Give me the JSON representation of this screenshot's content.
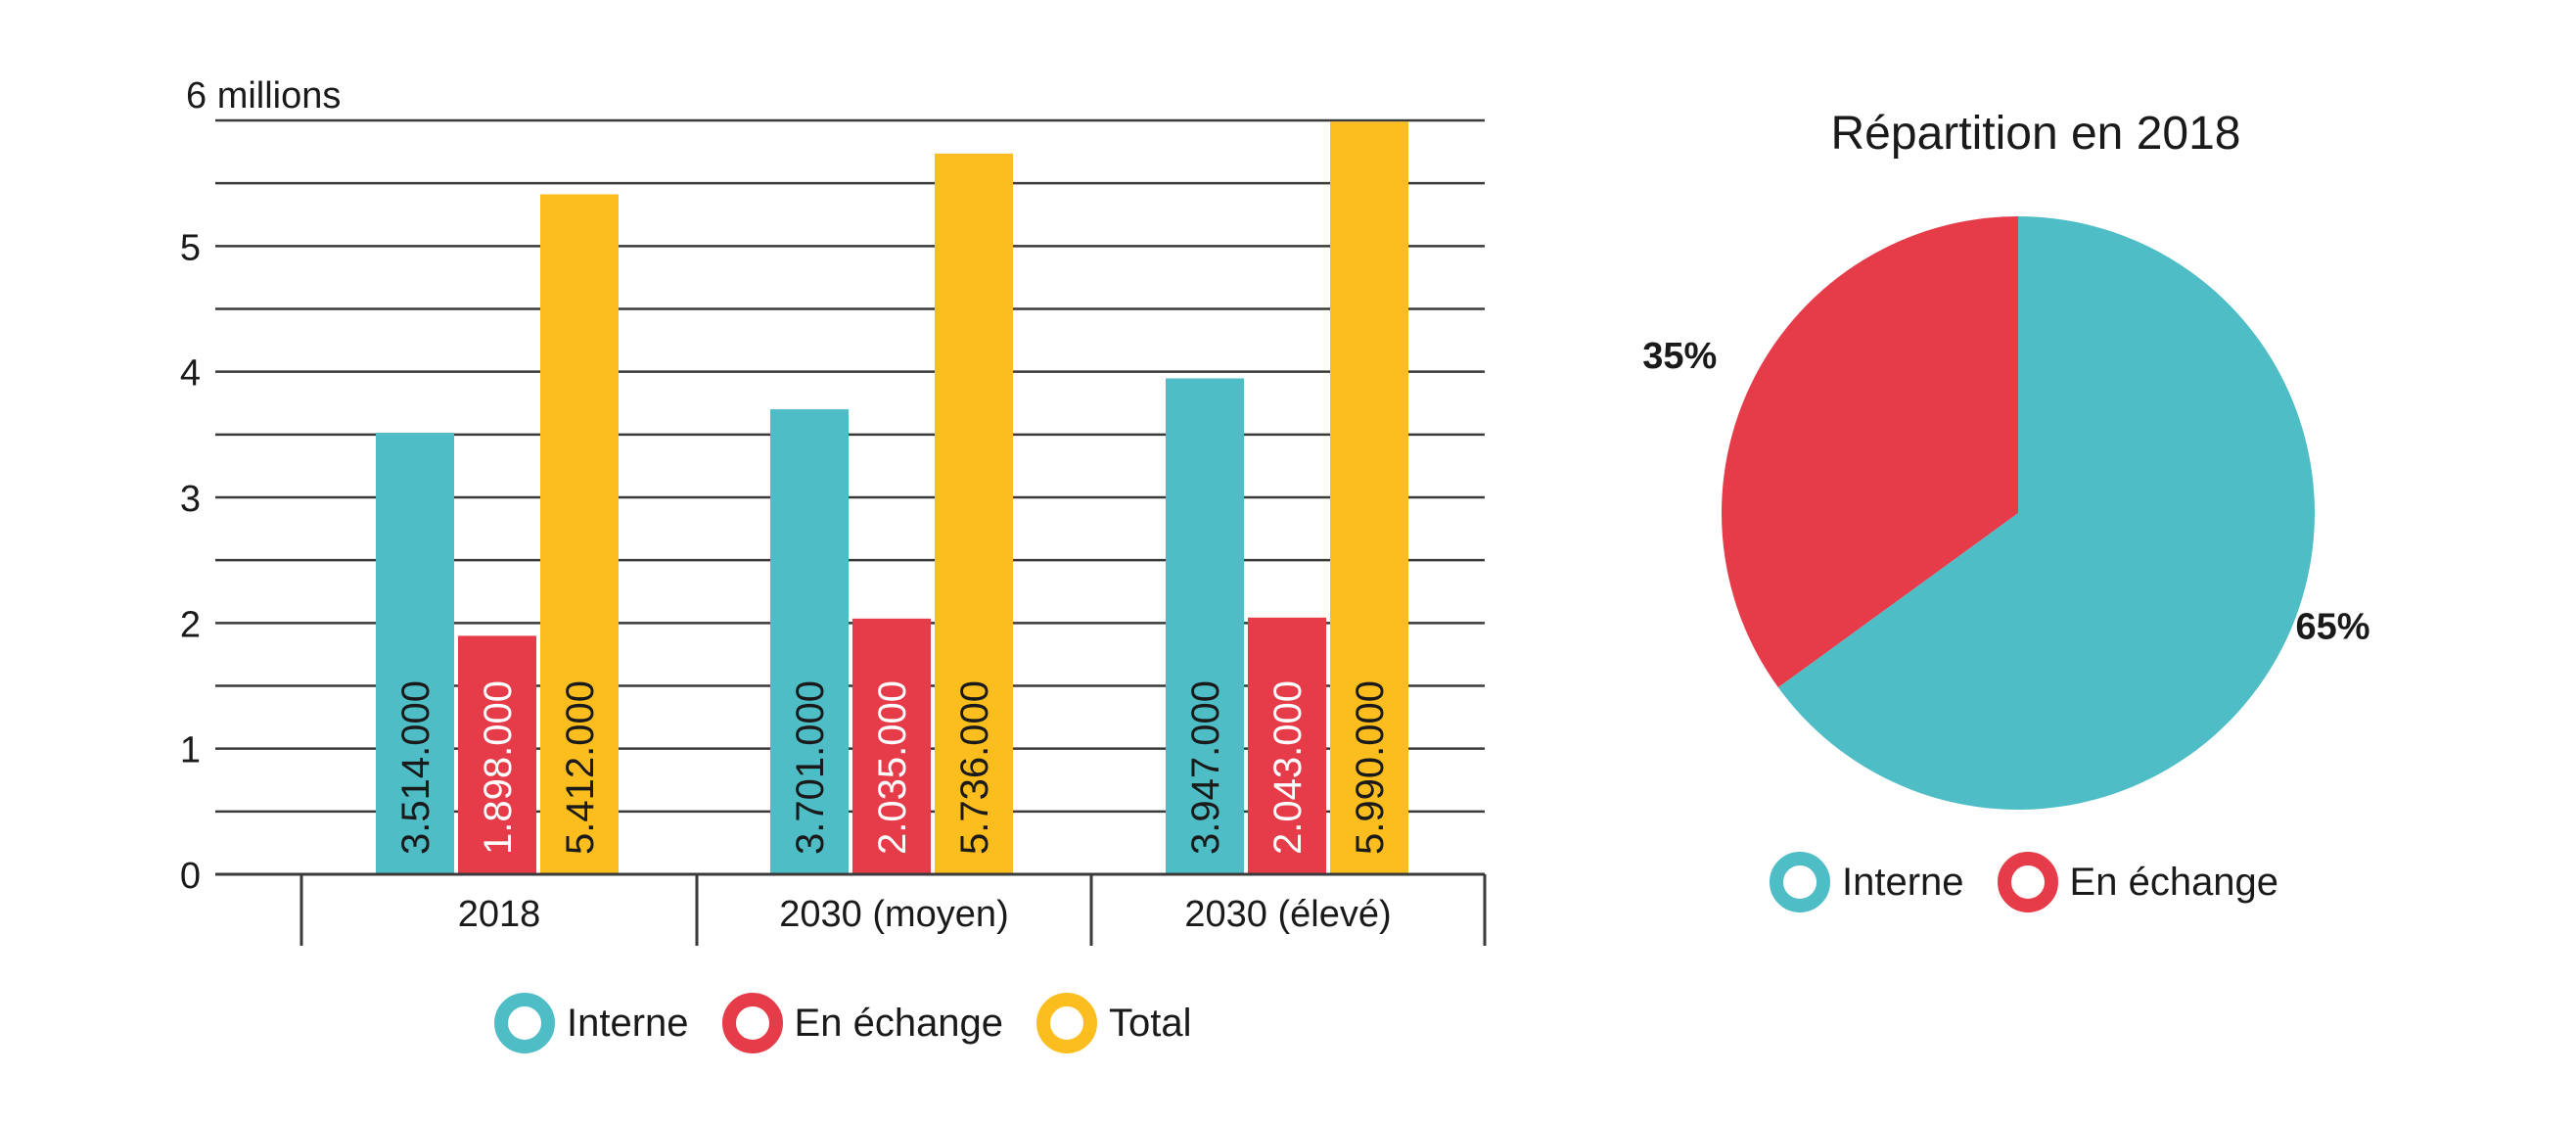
{
  "chart_data": [
    {
      "type": "bar",
      "ylabel_top": "6 millions",
      "yticks": [
        "0",
        "1",
        "2",
        "3",
        "4",
        "5"
      ],
      "ylim": [
        0,
        6000000
      ],
      "categories": [
        "2018",
        "2030 (moyen)",
        "2030 (élevé)"
      ],
      "series": [
        {
          "name": "Interne",
          "color": "#4fbdc6",
          "values": [
            3514000,
            3701000,
            3947000
          ],
          "labels": [
            "3.514.000",
            "3.701.000",
            "3.947.000"
          ]
        },
        {
          "name": "En échange",
          "color": "#e63c4a",
          "values": [
            1898000,
            2035000,
            2043000
          ],
          "labels": [
            "1.898.000",
            "2.035.000",
            "2.043.000"
          ]
        },
        {
          "name": "Total",
          "color": "#fbbe1e",
          "values": [
            5412000,
            5736000,
            5990000
          ],
          "labels": [
            "5.412.000",
            "5.736.000",
            "5.990.000"
          ]
        }
      ],
      "grid": true,
      "legend": "bottom"
    },
    {
      "type": "pie",
      "title": "Répartition en 2018",
      "slices": [
        {
          "name": "Interne",
          "value": 65,
          "label": "65%",
          "color": "#4fbdc6"
        },
        {
          "name": "En échange",
          "value": 35,
          "label": "35%",
          "color": "#e63c4a"
        }
      ],
      "legend": "bottom"
    }
  ]
}
